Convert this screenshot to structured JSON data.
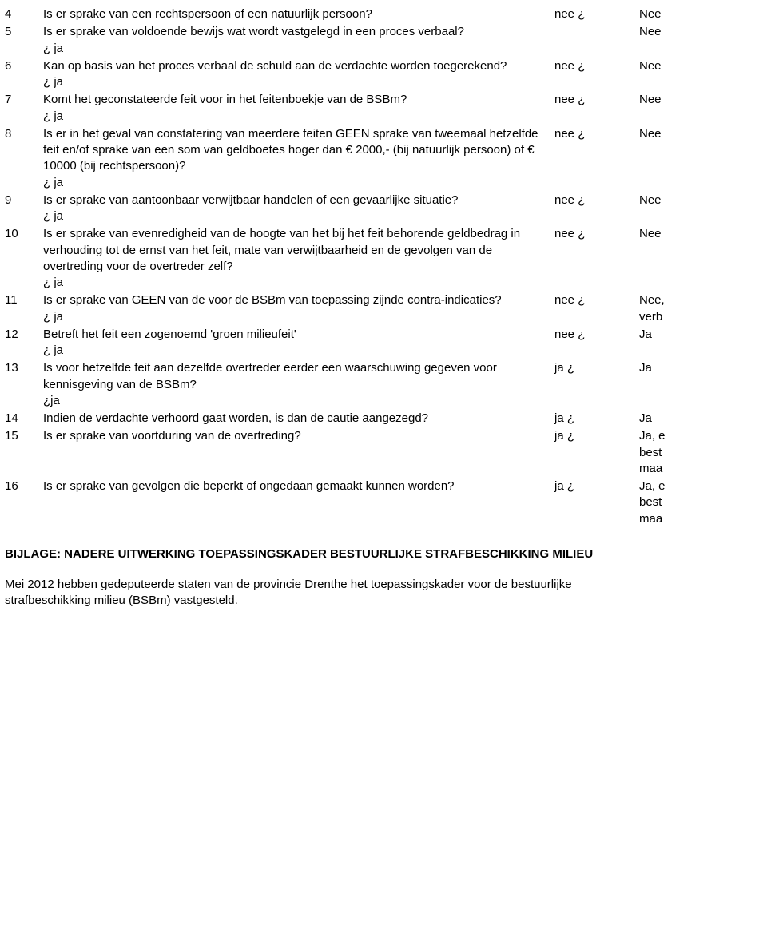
{
  "rows": [
    {
      "n": "4",
      "q": "Is er sprake van een rechtspersoon of een natuurlijk persoon?",
      "ja": "",
      "a1": "nee ¿",
      "a2": "Nee",
      "a2multi": false
    },
    {
      "n": "5",
      "q": "Is er sprake van voldoende bewijs wat wordt vastgelegd in een proces verbaal?",
      "ja": "¿ ja",
      "a1": "",
      "a2": "Nee",
      "a2multi": false
    },
    {
      "n": "6",
      "q": "Kan op basis van het proces verbaal de schuld aan de verdachte worden toegerekend?",
      "ja": "¿ ja",
      "a1": "nee ¿",
      "a2": "Nee",
      "a2multi": false
    },
    {
      "n": "7",
      "q": "Komt het geconstateerde feit voor in het feitenboekje van de BSBm?",
      "ja": "¿ ja",
      "a1": "nee ¿",
      "a2": "Nee",
      "a2multi": false
    },
    {
      "n": "8",
      "q": "Is er in het geval van constatering van meerdere feiten GEEN sprake van tweemaal hetzelfde feit en/of sprake van een som van geldboetes hoger dan € 2000,- (bij natuurlijk persoon) of € 10000 (bij rechtspersoon)?",
      "ja": "¿ ja",
      "a1": "nee ¿",
      "a2": "Nee",
      "a2multi": false
    },
    {
      "n": "9",
      "q": "Is er sprake van aantoonbaar verwijtbaar handelen of een gevaarlijke situatie?",
      "ja": "¿ ja",
      "a1": "nee ¿",
      "a2": "Nee",
      "a2multi": false
    },
    {
      "n": "10",
      "q": "Is er sprake van evenredigheid van de hoogte van het bij het feit behorende geldbedrag in verhouding tot de ernst van het feit, mate van verwijtbaarheid en de gevolgen van de overtreding voor de overtreder zelf?",
      "ja": "¿ ja",
      "a1": "nee ¿",
      "a2": "Nee",
      "a2multi": false
    },
    {
      "n": "11",
      "q": "Is er sprake van GEEN van de voor de BSBm van toepassing zijnde contra-indicaties?",
      "ja": "¿ ja",
      "a1": "nee ¿",
      "a2": "Nee,\nverb",
      "a2multi": true
    },
    {
      "n": "12",
      "q": "Betreft het feit een zogenoemd 'groen milieufeit'",
      "ja": "¿ ja",
      "a1": "nee ¿",
      "a2": "Ja",
      "a2multi": false
    },
    {
      "n": "13",
      "q": "Is voor hetzelfde feit aan dezelfde overtreder eerder een waarschuwing gegeven voor kennisgeving van de BSBm?",
      "ja": "¿ja",
      "a1": "ja ¿",
      "a2": "Ja",
      "a2multi": false
    },
    {
      "n": "14",
      "q": "Indien de verdachte verhoord gaat worden, is dan de cautie aangezegd?",
      "ja": "",
      "a1": "ja ¿",
      "a2": "Ja",
      "a2multi": false
    },
    {
      "n": "15",
      "q": "Is er sprake van voortduring van de overtreding?",
      "ja": "",
      "a1": "ja ¿",
      "a2": "Ja, e\nbest\nmaa",
      "a2multi": true
    },
    {
      "n": "16",
      "q": "Is er sprake van gevolgen die beperkt of ongedaan gemaakt kunnen worden?",
      "ja": "",
      "a1": "ja ¿",
      "a2": "Ja, e\nbest\nmaa",
      "a2multi": true
    }
  ],
  "bijlage_title": "BIJLAGE: NADERE UITWERKING TOEPASSINGSKADER BESTUURLIJKE STRAFBESCHIKKING MILIEU",
  "paragraph": "Mei 2012 hebben gedeputeerde staten van de provincie Drenthe het toepassingskader voor de bestuurlijke strafbeschikking milieu (BSBm) vastgesteld."
}
